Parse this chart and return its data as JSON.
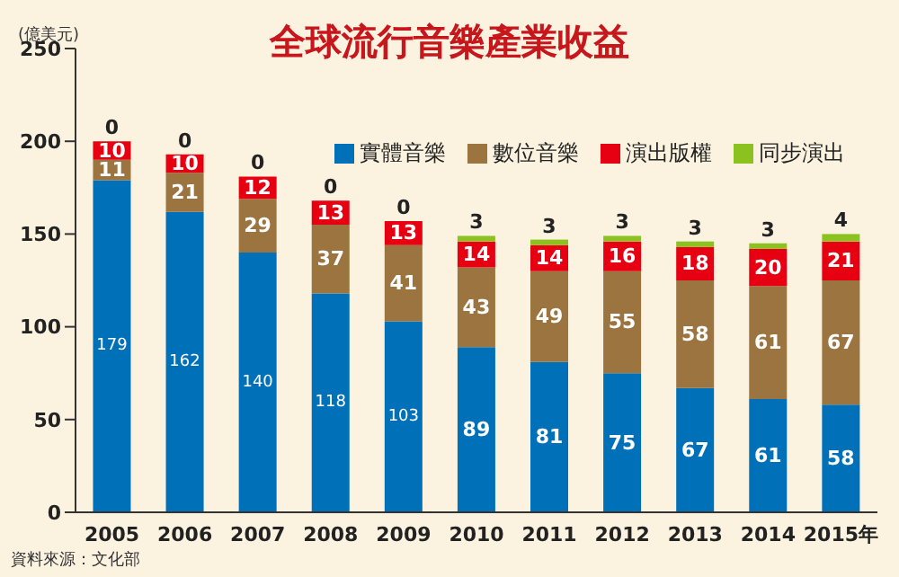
{
  "chart_data": {
    "type": "bar",
    "title": "全球流行音樂產業收益",
    "ylabel": "(億美元)",
    "categories": [
      "2005",
      "2006",
      "2007",
      "2008",
      "2009",
      "2010",
      "2011",
      "2012",
      "2013",
      "2014",
      "2015年"
    ],
    "series": [
      {
        "name": "實體音樂",
        "color": "#0070b8",
        "values": [
          179,
          162,
          140,
          118,
          103,
          89,
          81,
          75,
          67,
          61,
          58
        ]
      },
      {
        "name": "數位音樂",
        "color": "#9b7440",
        "values": [
          11,
          21,
          29,
          37,
          41,
          43,
          49,
          55,
          58,
          61,
          67
        ]
      },
      {
        "name": "演出版權",
        "color": "#e60012",
        "values": [
          10,
          10,
          12,
          13,
          13,
          14,
          14,
          16,
          18,
          20,
          21
        ]
      },
      {
        "name": "同步演出",
        "color": "#8cc21f",
        "values": [
          0,
          0,
          0,
          0,
          0,
          3,
          3,
          3,
          3,
          3,
          4
        ]
      }
    ],
    "stacked": true,
    "data_labels": true,
    "ylim": [
      0,
      250
    ],
    "yticks": [
      0,
      50,
      100,
      150,
      200,
      250
    ],
    "grid": false,
    "legend": "top right",
    "annotations": [
      "資料來源：文化部"
    ]
  }
}
